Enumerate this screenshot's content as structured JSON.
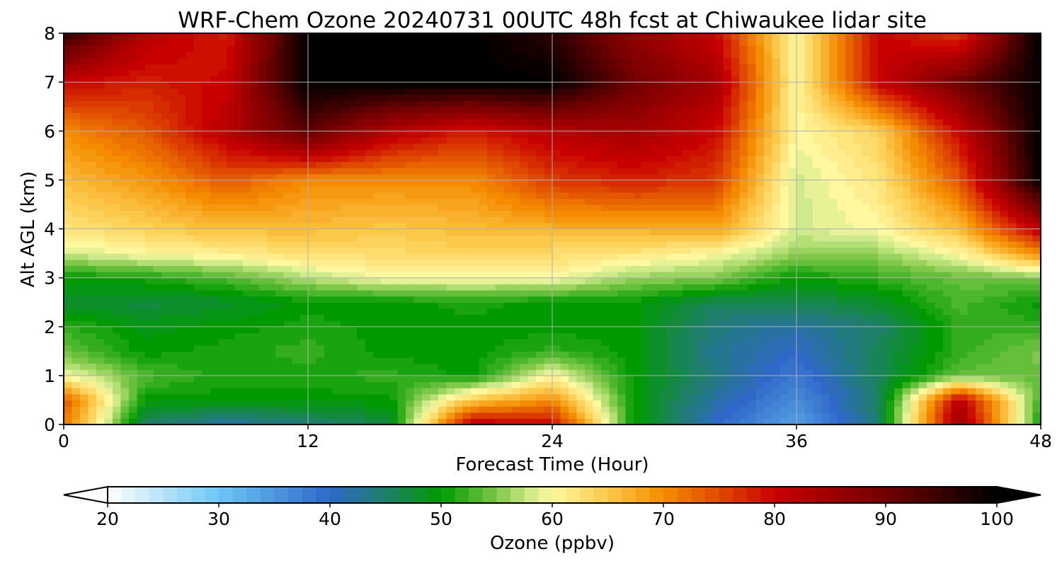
{
  "chart_data": {
    "type": "heatmap",
    "title": "WRF-Chem Ozone  20240731 00UTC 48h fcst at Chiwaukee lidar site",
    "xlabel": "Forecast Time (Hour)",
    "ylabel": "Alt AGL (km)",
    "xlim": [
      0,
      48
    ],
    "ylim": [
      0,
      8
    ],
    "x_ticks": [
      "0",
      "12",
      "24",
      "36",
      "48"
    ],
    "y_ticks": [
      "0",
      "1",
      "2",
      "3",
      "4",
      "5",
      "6",
      "7",
      "8"
    ],
    "grid": true,
    "x": [
      0,
      4,
      8,
      12,
      16,
      20,
      24,
      28,
      32,
      36,
      40,
      44,
      48
    ],
    "y": [
      0,
      0.5,
      1,
      1.5,
      2,
      2.5,
      3,
      3.5,
      4,
      5,
      6,
      7,
      8
    ],
    "z": [
      [
        72,
        45,
        42,
        44,
        47,
        82,
        80,
        50,
        40,
        34,
        45,
        86,
        50
      ],
      [
        74,
        50,
        50,
        50,
        50,
        65,
        70,
        50,
        42,
        36,
        45,
        82,
        52
      ],
      [
        60,
        53,
        51,
        51,
        52,
        50,
        60,
        50,
        44,
        38,
        46,
        54,
        54
      ],
      [
        54,
        50,
        51,
        52,
        50,
        50,
        52,
        50,
        43,
        40,
        46,
        52,
        55
      ],
      [
        52,
        49,
        50,
        51,
        50,
        50,
        50,
        50,
        44,
        42,
        45,
        52,
        52
      ],
      [
        48,
        47,
        48,
        50,
        50,
        51,
        50,
        50,
        46,
        46,
        48,
        53,
        50
      ],
      [
        50,
        51,
        53,
        57,
        60,
        60,
        60,
        56,
        55,
        50,
        52,
        54,
        55
      ],
      [
        58,
        60,
        61,
        63,
        63,
        64,
        63,
        62,
        60,
        56,
        56,
        60,
        70
      ],
      [
        62,
        64,
        66,
        66,
        65,
        66,
        67,
        67,
        68,
        58,
        60,
        66,
        82
      ],
      [
        66,
        69,
        74,
        70,
        70,
        70,
        76,
        78,
        76,
        58,
        62,
        74,
        100
      ],
      [
        70,
        74,
        82,
        92,
        82,
        78,
        82,
        84,
        80,
        60,
        64,
        80,
        100
      ],
      [
        80,
        78,
        80,
        100,
        100,
        100,
        100,
        90,
        84,
        60,
        80,
        90,
        100
      ],
      [
        96,
        82,
        78,
        100,
        100,
        100,
        96,
        86,
        80,
        60,
        80,
        76,
        100
      ]
    ],
    "colorbar": {
      "label": "Ozone  (ppbv)",
      "ticks": [
        "20",
        "30",
        "40",
        "50",
        "60",
        "70",
        "80",
        "90",
        "100"
      ],
      "range": [
        20,
        100
      ],
      "extend": "both",
      "stops": [
        {
          "v": 20,
          "c": "#ffffff"
        },
        {
          "v": 30,
          "c": "#6ec6f5"
        },
        {
          "v": 40,
          "c": "#2f68c9"
        },
        {
          "v": 45,
          "c": "#1f7f6a"
        },
        {
          "v": 50,
          "c": "#009a00"
        },
        {
          "v": 55,
          "c": "#7fc84a"
        },
        {
          "v": 58,
          "c": "#cfea8a"
        },
        {
          "v": 60,
          "c": "#fff8a0"
        },
        {
          "v": 65,
          "c": "#fcc84a"
        },
        {
          "v": 70,
          "c": "#f58c00"
        },
        {
          "v": 75,
          "c": "#e04a00"
        },
        {
          "v": 80,
          "c": "#c80000"
        },
        {
          "v": 90,
          "c": "#700000"
        },
        {
          "v": 100,
          "c": "#000000"
        }
      ]
    }
  }
}
